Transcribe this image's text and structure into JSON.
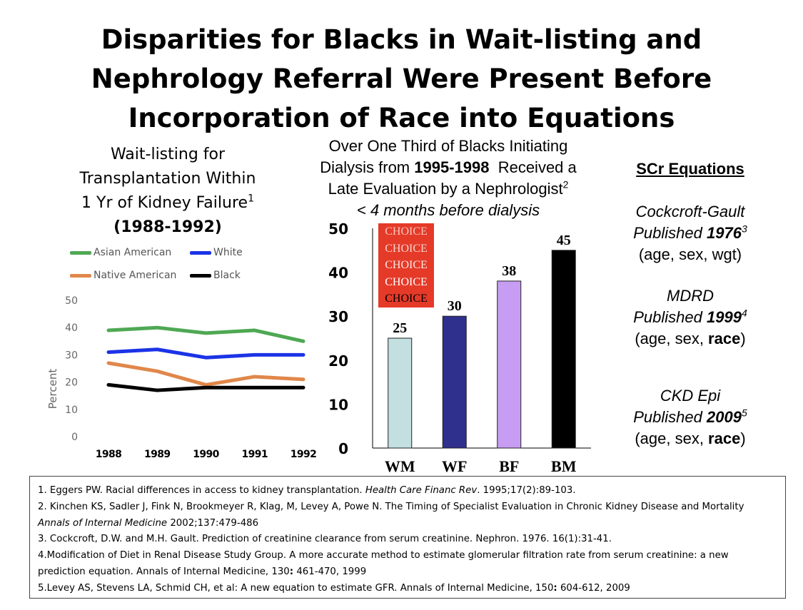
{
  "title_lines": [
    "Disparities for Blacks in Wait-listing and",
    "Nephrology Referral Were Present Before",
    "Incorporation of Race into Equations"
  ],
  "line_chart_title": {
    "line1": "Wait-listing for",
    "line2": "Transplantation Within",
    "line3": "1 Yr of Kidney Failure",
    "line3_sup": "1",
    "line4": "(1988-1992)"
  },
  "bar_chart_title": {
    "line1": "Over One Third of Blacks Initiating",
    "line2_pre": "Dialysis from ",
    "line2_bold": "1995-1998",
    "line2_post": "  Received a",
    "line3": "Late Evaluation by a Nephrologist",
    "line3_sup": "2",
    "line4": "< 4 months before dialysis"
  },
  "choice_box": {
    "lines": [
      "CHOICE",
      "CHOICE",
      "CHOICE",
      "CHOICE",
      "CHOICE"
    ],
    "colors": [
      "#f7c6bf",
      "#f5d3cd",
      "#fbe7e3",
      "#ffffff",
      "#000000"
    ]
  },
  "chart_data": [
    {
      "type": "line",
      "title": "Wait-listing for Transplantation Within 1 Yr of Kidney Failure (1988-1992)",
      "x": [
        "1988",
        "1989",
        "1990",
        "1991",
        "1992"
      ],
      "series": [
        {
          "name": "Asian American",
          "color": "#4ea853",
          "values": [
            39,
            40,
            38,
            39,
            35
          ]
        },
        {
          "name": "White",
          "color": "#1b33e6",
          "values": [
            31,
            32,
            29,
            30,
            30
          ]
        },
        {
          "name": "Native American",
          "color": "#e0874a",
          "values": [
            27,
            24,
            19,
            22,
            21
          ]
        },
        {
          "name": "Black",
          "color": "#000000",
          "values": [
            19,
            17,
            18,
            18,
            18
          ]
        }
      ],
      "ylabel": "Percent",
      "ylim": [
        0,
        50
      ],
      "yticks": [
        "0",
        "10",
        "20",
        "30",
        "40",
        "50"
      ],
      "grid": false,
      "legend": "top"
    },
    {
      "type": "bar",
      "categories": [
        "WM",
        "WF",
        "BF",
        "BM"
      ],
      "values": [
        25,
        30,
        38,
        45
      ],
      "value_labels": [
        "25",
        "30",
        "38",
        "45"
      ],
      "colors": [
        "#c3dfe0",
        "#2f2f8e",
        "#c79cf3",
        "#000000"
      ],
      "ylim": [
        0,
        50
      ],
      "yticks": [
        "0",
        "10",
        "20",
        "30",
        "40",
        "50"
      ],
      "grid": false
    }
  ],
  "scr_equations": {
    "header": "SCr Equations",
    "items": [
      {
        "name": "Cockcroft-Gault",
        "published": "Published ",
        "year": "1976",
        "sup": "3",
        "vars_pre": "(age, sex, wgt)",
        "vars_bold": "",
        "vars_post": ""
      },
      {
        "name": "MDRD",
        "published": "Published ",
        "year": "1999",
        "sup": "4",
        "vars_pre": "(age, sex, ",
        "vars_bold": "race",
        "vars_post": ")"
      },
      {
        "name": "CKD Epi",
        "published": "Published ",
        "year": "2009",
        "sup": "5",
        "vars_pre": "(age, sex, ",
        "vars_bold": "race",
        "vars_post": ")"
      }
    ]
  },
  "references": [
    {
      "pre": "1. Eggers PW. Racial differences in access to kidney transplantation. ",
      "journal": "Health Care Financ Rev",
      "post": ". 1995;17(2):89-103."
    },
    {
      "pre": "2. Kinchen KS, Sadler J, Fink N, Brookmeyer R, Klag, M,  Levey A, Powe N. The Timing of Specialist Evaluation in Chronic Kidney Disease and Mortality ",
      "journal": "Annals of Internal Medicine",
      "post": " 2002;137:479-486"
    },
    {
      "pre": "3. Cockcroft, D.W. and M.H. Gault. Prediction of creatinine clearance from serum creatinine. Nephron. 1976. 16(1):31-41.",
      "journal": "",
      "post": ""
    },
    {
      "pre": "4.Modification of Diet in Renal Disease Study Group. A more accurate method to estimate glomerular filtration rate from serum creatinine: a new prediction equation. Annals of Internal Medicine, 130",
      "journal": "",
      "bold": ":",
      "post": " 461-470, 1999"
    },
    {
      "pre": "5.Levey AS, Stevens LA, Schmid CH, et al: A new equation to estimate GFR. Annals of Internal Medicine, 150",
      "journal": "",
      "bold": ":",
      "post": " 604-612, 2009"
    }
  ]
}
